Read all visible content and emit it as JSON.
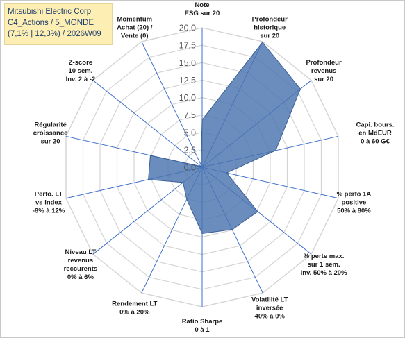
{
  "header": {
    "line1": "Mitsubishi Electric Corp",
    "line2": "C4_Actions / 5_MONDE",
    "line3": "(7,1% | 12,3%) / 2026W09"
  },
  "chart_data": {
    "type": "radar",
    "rlim": [
      0,
      20
    ],
    "ticks": [
      "0,0",
      "2,5",
      "5,0",
      "7,5",
      "10,0",
      "12,5",
      "15,0",
      "17,5",
      "20,0"
    ],
    "tick_values": [
      0,
      2.5,
      5,
      7.5,
      10,
      12.5,
      15,
      17.5,
      20
    ],
    "axes": [
      [
        "Note",
        "ESG sur 20"
      ],
      [
        "Profondeur",
        "historique",
        "sur 20"
      ],
      [
        "Profondeur",
        "revenus",
        "sur 20"
      ],
      [
        "Capi. bours.",
        "en MdEUR",
        "0 à 60 G€"
      ],
      [
        "% perfo 1A",
        "positive",
        "50% à 80%"
      ],
      [
        "% perte max.",
        "sur 1 sem.",
        "Inv. 50% à 20%"
      ],
      [
        "Volatilité LT",
        "inversée",
        "40% à 0%"
      ],
      [
        "Ratio Sharpe",
        "0 à 1"
      ],
      [
        "Rendement LT",
        "0% à 20%"
      ],
      [
        "Niveau LT",
        "revenus",
        "reccurents",
        "0% à 6%"
      ],
      [
        "Perfo. LT",
        "vs index",
        "-8% à 12%"
      ],
      [
        "Régularité",
        "croissance",
        "sur 20"
      ],
      [
        "Z-score",
        "10 sem.",
        "Inv. 2 à -2"
      ],
      [
        "Momentum",
        "Achat (20) /",
        "Vente (0)"
      ]
    ],
    "series": [
      {
        "values": [
          6.8,
          19.9,
          18.0,
          10.8,
          3.6,
          10.2,
          9.9,
          9.5,
          5.1,
          3.5,
          7.9,
          7.6,
          0.2,
          0.4
        ],
        "color": "#4a74b0"
      }
    ],
    "grid": true
  }
}
